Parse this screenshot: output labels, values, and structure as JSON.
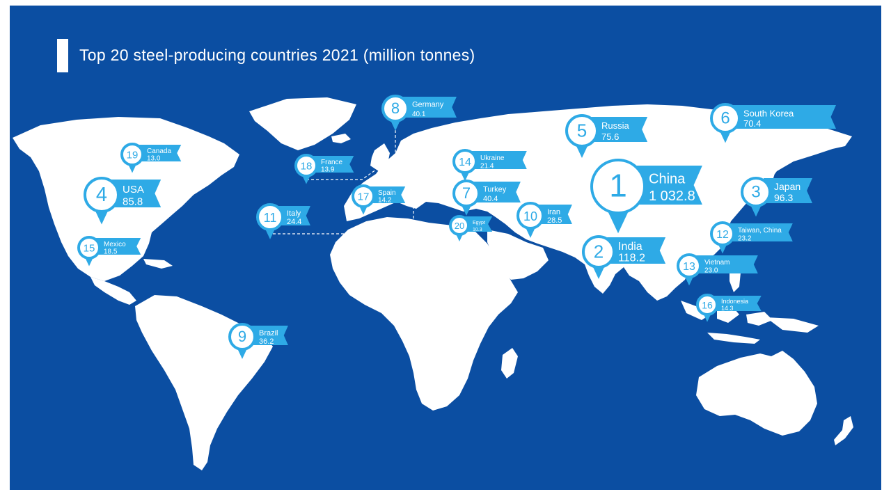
{
  "title": "Top 20 steel-producing countries 2021 (million tonnes)",
  "colors": {
    "background": "#0b4ea2",
    "land": "#ffffff",
    "accent": "#2eaae6"
  },
  "countries": [
    {
      "rank": "1",
      "name": "China",
      "value": "1 032.8"
    },
    {
      "rank": "2",
      "name": "India",
      "value": "118.2"
    },
    {
      "rank": "3",
      "name": "Japan",
      "value": "96.3"
    },
    {
      "rank": "4",
      "name": "USA",
      "value": "85.8"
    },
    {
      "rank": "5",
      "name": "Russia",
      "value": "75.6"
    },
    {
      "rank": "6",
      "name": "South Korea",
      "value": "70.4"
    },
    {
      "rank": "7",
      "name": "Turkey",
      "value": "40.4"
    },
    {
      "rank": "8",
      "name": "Germany",
      "value": "40.1"
    },
    {
      "rank": "9",
      "name": "Brazil",
      "value": "36.2"
    },
    {
      "rank": "10",
      "name": "Iran",
      "value": "28.5"
    },
    {
      "rank": "11",
      "name": "Italy",
      "value": "24.4"
    },
    {
      "rank": "12",
      "name": "Taiwan, China",
      "value": "23.2"
    },
    {
      "rank": "13",
      "name": "Vietnam",
      "value": "23.0"
    },
    {
      "rank": "14",
      "name": "Ukraine",
      "value": "21.4"
    },
    {
      "rank": "15",
      "name": "Mexico",
      "value": "18.5"
    },
    {
      "rank": "16",
      "name": "Indonesia",
      "value": "14.3"
    },
    {
      "rank": "17",
      "name": "Spain",
      "value": "14.2"
    },
    {
      "rank": "18",
      "name": "France",
      "value": "13.9"
    },
    {
      "rank": "19",
      "name": "Canada",
      "value": "13.0"
    },
    {
      "rank": "20",
      "name": "Egypt",
      "value": "10.3"
    }
  ]
}
